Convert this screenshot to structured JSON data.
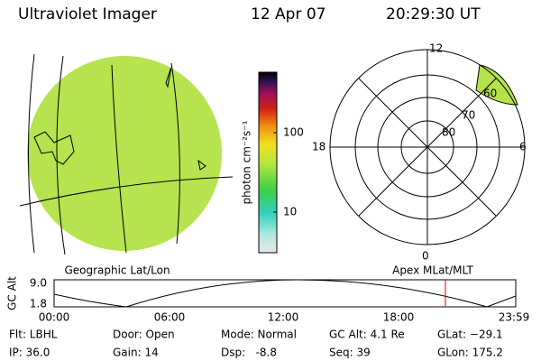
{
  "header": {
    "title": "Ultraviolet Imager",
    "date": "12 Apr 07",
    "time": "20:29:30 UT"
  },
  "globe": {
    "label": "Geographic Lat/Lon"
  },
  "colorbar": {
    "label": "photon cm⁻²s⁻¹",
    "ticks": [
      "100",
      "10"
    ]
  },
  "polar": {
    "label": "Apex MLat/MLT",
    "hours": [
      "12",
      "18",
      "6",
      "0"
    ],
    "lats": [
      "60",
      "70",
      "80"
    ]
  },
  "timeline": {
    "axis_label": "GC Alt",
    "yticks": [
      "9.0",
      "1.8"
    ],
    "xticks": [
      "00:00",
      "06:00",
      "12:00",
      "18:00",
      "23:59"
    ]
  },
  "status": [
    [
      "Flt: LBHL",
      "Door: Open",
      "Mode: Normal",
      "GC Alt: 4.1 Re",
      "GLat: −29.1"
    ],
    [
      "IP: 36.0",
      "Gain: 14",
      "Dsp:   -8.8",
      "Seq: 39",
      "GLon: 175.2"
    ]
  ]
}
